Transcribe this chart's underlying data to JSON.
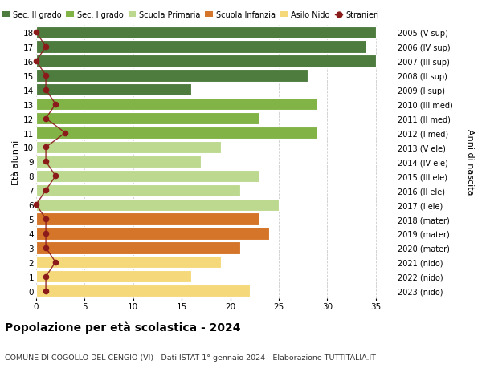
{
  "ages": [
    18,
    17,
    16,
    15,
    14,
    13,
    12,
    11,
    10,
    9,
    8,
    7,
    6,
    5,
    4,
    3,
    2,
    1,
    0
  ],
  "labels_right": [
    "2005 (V sup)",
    "2006 (IV sup)",
    "2007 (III sup)",
    "2008 (II sup)",
    "2009 (I sup)",
    "2010 (III med)",
    "2011 (II med)",
    "2012 (I med)",
    "2013 (V ele)",
    "2014 (IV ele)",
    "2015 (III ele)",
    "2016 (II ele)",
    "2017 (I ele)",
    "2018 (mater)",
    "2019 (mater)",
    "2020 (mater)",
    "2021 (nido)",
    "2022 (nido)",
    "2023 (nido)"
  ],
  "bar_values": [
    35,
    34,
    35,
    28,
    16,
    29,
    23,
    29,
    19,
    17,
    23,
    21,
    25,
    23,
    24,
    21,
    19,
    16,
    22
  ],
  "stranieri": [
    0,
    1,
    0,
    1,
    1,
    2,
    1,
    3,
    1,
    1,
    2,
    1,
    0,
    1,
    1,
    1,
    2,
    1,
    1
  ],
  "bar_colors": [
    "#4e7c3f",
    "#4e7c3f",
    "#4e7c3f",
    "#4e7c3f",
    "#4e7c3f",
    "#82b347",
    "#82b347",
    "#82b347",
    "#bdd98f",
    "#bdd98f",
    "#bdd98f",
    "#bdd98f",
    "#bdd98f",
    "#d4752a",
    "#d4752a",
    "#d4752a",
    "#f5d87a",
    "#f5d87a",
    "#f5d87a"
  ],
  "legend_labels": [
    "Sec. II grado",
    "Sec. I grado",
    "Scuola Primaria",
    "Scuola Infanzia",
    "Asilo Nido",
    "Stranieri"
  ],
  "legend_colors": [
    "#4e7c3f",
    "#82b347",
    "#bdd98f",
    "#d4752a",
    "#f5d87a",
    "#a00000"
  ],
  "ylabel_left": "Età alunni",
  "ylabel_right": "Anni di nascita",
  "title": "Popolazione per età scolastica - 2024",
  "subtitle": "COMUNE DI COGOLLO DEL CENGIO (VI) - Dati ISTAT 1° gennaio 2024 - Elaborazione TUTTITALIA.IT",
  "xlim": [
    0,
    37
  ],
  "stranieri_color": "#8b1a1a",
  "bar_height": 0.85,
  "background_color": "#ffffff",
  "grid_color": "#cccccc"
}
